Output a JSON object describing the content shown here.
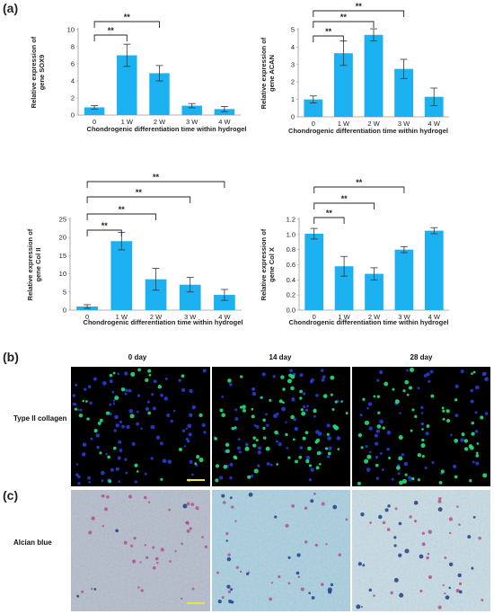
{
  "panel_labels": {
    "a": "(a)",
    "b": "(b)",
    "c": "(c)"
  },
  "colors": {
    "bar": "#1cb1f0",
    "axis": "#9a9a9a",
    "bracket": "#222222",
    "error": "#333333",
    "fluor_bg": "#000000",
    "dapi": "#2a3fe0",
    "col2": "#23e07a",
    "alcian_bg1": "#b4bccb",
    "alcian_bg2": "#a9cfe0",
    "alcian_bg3": "#c6dbe4",
    "scale_bar": "#f0e040"
  },
  "chart_data": [
    {
      "type": "bar",
      "ylabel": "Relative expression of gene SOX9",
      "xlabel": "Chondrogenic differentiation time within hydrogel",
      "categories": [
        "0",
        "1 W",
        "2 W",
        "3 W",
        "4 W"
      ],
      "values": [
        0.9,
        7.0,
        4.9,
        1.1,
        0.7
      ],
      "errors": [
        0.2,
        1.3,
        0.9,
        0.25,
        0.3
      ],
      "ylim": [
        0,
        10
      ],
      "yticks": [
        "0",
        "2",
        "4",
        "6",
        "8",
        "10"
      ],
      "significance": [
        {
          "from": "0",
          "to": "1 W",
          "label": "**"
        },
        {
          "from": "0",
          "to": "2 W",
          "label": "**"
        }
      ]
    },
    {
      "type": "bar",
      "ylabel": "Relative expression of gene ACAN",
      "xlabel": "Chondrogenic differentiation time within hydrogel",
      "categories": [
        "0",
        "1 W",
        "2 W",
        "3 W",
        "4 W"
      ],
      "values": [
        1.0,
        3.65,
        4.7,
        2.75,
        1.15
      ],
      "errors": [
        0.2,
        0.7,
        0.35,
        0.55,
        0.5
      ],
      "ylim": [
        0,
        5
      ],
      "yticks": [
        "0",
        "1",
        "2",
        "3",
        "4",
        "5"
      ],
      "significance": [
        {
          "from": "0",
          "to": "1 W",
          "label": "**"
        },
        {
          "from": "0",
          "to": "2 W",
          "label": "**"
        },
        {
          "from": "0",
          "to": "3 W",
          "label": "**"
        }
      ]
    },
    {
      "type": "bar",
      "ylabel": "Relative expression of gene Col II",
      "xlabel": "Chondrogenic differentiation time within hydrogel",
      "categories": [
        "0",
        "1 W",
        "2 W",
        "3 W",
        "4 W"
      ],
      "values": [
        1.0,
        19.0,
        8.5,
        7.0,
        4.2
      ],
      "errors": [
        0.5,
        2.4,
        3.0,
        2.0,
        1.5
      ],
      "ylim": [
        0,
        25
      ],
      "yticks": [
        "0",
        "5",
        "10",
        "15",
        "20",
        "25"
      ],
      "significance": [
        {
          "from": "0",
          "to": "1 W",
          "label": "**"
        },
        {
          "from": "0",
          "to": "2 W",
          "label": "**"
        },
        {
          "from": "0",
          "to": "3 W",
          "label": "**"
        },
        {
          "from": "0",
          "to": "4 W",
          "label": "**"
        }
      ]
    },
    {
      "type": "bar",
      "ylabel": "Relative expression of gene Col X",
      "xlabel": "Chondrogenic differentiation time within hydrogel",
      "categories": [
        "0",
        "1 W",
        "2 W",
        "3 W",
        "4 W"
      ],
      "values": [
        1.01,
        0.58,
        0.48,
        0.8,
        1.05
      ],
      "errors": [
        0.07,
        0.13,
        0.08,
        0.04,
        0.04
      ],
      "ylim": [
        0,
        1.2
      ],
      "yticks": [
        "0.0",
        "0.2",
        "0.4",
        "0.6",
        "0.8",
        "1.0",
        "1.2"
      ],
      "significance": [
        {
          "from": "0",
          "to": "1 W",
          "label": "**"
        },
        {
          "from": "0",
          "to": "2 W",
          "label": "**"
        },
        {
          "from": "0",
          "to": "3 W",
          "label": "**"
        }
      ]
    }
  ],
  "staining": {
    "columns": [
      "0 day",
      "14 day",
      "28 day"
    ],
    "rows": [
      "Type II collagen",
      "Alcian blue"
    ]
  }
}
